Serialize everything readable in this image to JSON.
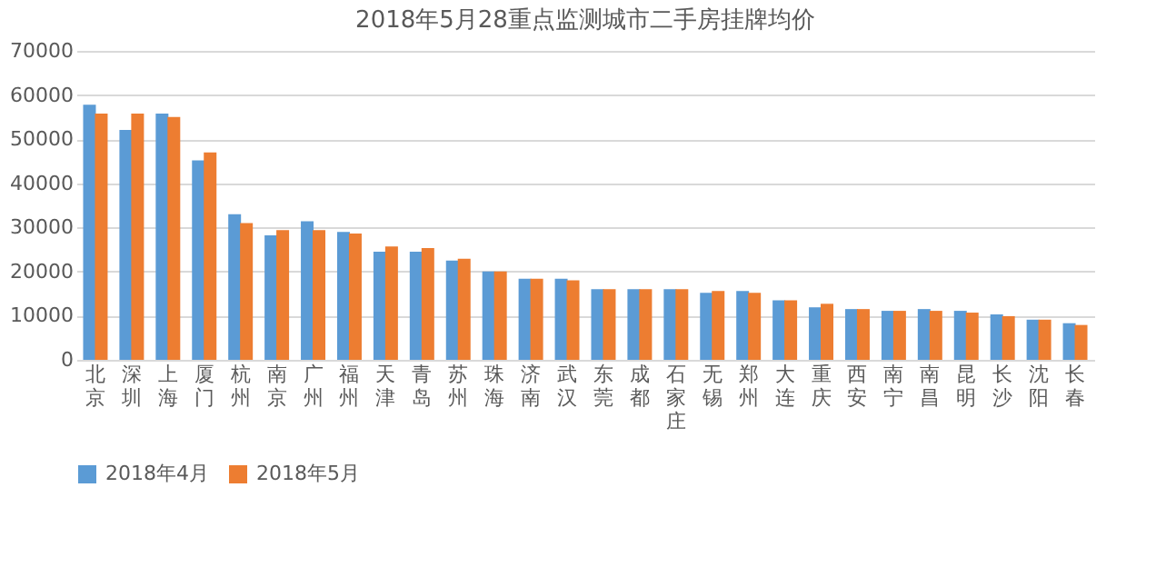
{
  "chart_data": {
    "type": "bar",
    "title": "2018年5月28重点监测城市二手房挂牌均价",
    "categories": [
      "北京",
      "深圳",
      "上海",
      "厦门",
      "杭州",
      "南京",
      "广州",
      "福州",
      "天津",
      "青岛",
      "苏州",
      "珠海",
      "济南",
      "武汉",
      "东莞",
      "成都",
      "石家庄",
      "无锡",
      "郑州",
      "大连",
      "重庆",
      "西安",
      "南宁",
      "南昌",
      "昆明",
      "长沙",
      "沈阳",
      "长春"
    ],
    "series": [
      {
        "name": "2018年4月",
        "color": "#5b9bd5",
        "values": [
          57800,
          52100,
          55800,
          45200,
          33000,
          28200,
          31400,
          29000,
          24500,
          24500,
          22500,
          20000,
          18400,
          18400,
          16000,
          16000,
          16000,
          15200,
          15600,
          13500,
          11900,
          11500,
          11100,
          11500,
          11100,
          10300,
          9100,
          8300
        ]
      },
      {
        "name": "2018年5月",
        "color": "#ed7d31",
        "values": [
          55800,
          55800,
          55000,
          47000,
          31000,
          29400,
          29400,
          28600,
          25700,
          25300,
          22900,
          20000,
          18400,
          18000,
          16000,
          16000,
          16000,
          15600,
          15200,
          13500,
          12700,
          11500,
          11100,
          11100,
          10700,
          9900,
          9100,
          7900
        ]
      }
    ],
    "ylim": [
      0,
      70000
    ],
    "yticks": [
      0,
      10000,
      20000,
      30000,
      40000,
      50000,
      60000,
      70000
    ],
    "grid": "y",
    "legend": "bottom"
  }
}
